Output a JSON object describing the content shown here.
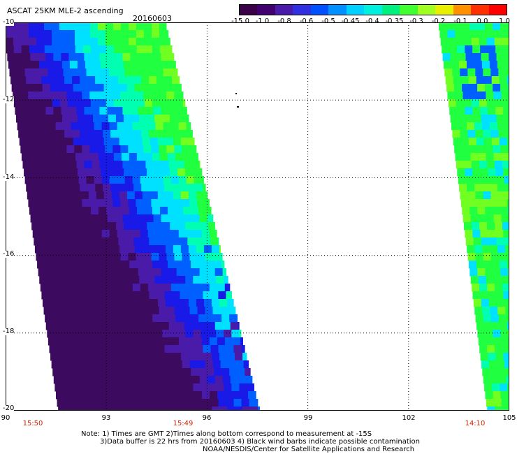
{
  "header": {
    "title": "ASCAT 25KM MLE-2 ascending",
    "date": "20160603"
  },
  "colorbar": {
    "labels": [
      "-15.0",
      "-1.0",
      "-0.8",
      "-0.6",
      "-0.5",
      "-0.45",
      "-0.4",
      "-0.35",
      "-0.3",
      "-0.2",
      "-0.1",
      "0.0",
      "1.0"
    ],
    "colors": [
      "#3a0048",
      "#400070",
      "#4a1aa8",
      "#3030e0",
      "#0050ff",
      "#0090ff",
      "#00d0ff",
      "#00f0e0",
      "#00f080",
      "#40ff30",
      "#a0ff20",
      "#e8f000",
      "#ff9000",
      "#ff3000",
      "#ff0000"
    ]
  },
  "map": {
    "lat_labels": [
      "-10",
      "-12",
      "-14",
      "-16",
      "-18",
      "-20"
    ],
    "lon_labels": [
      "90",
      "93",
      "96",
      "99",
      "102",
      "105"
    ],
    "times": [
      "15:50",
      "15:49",
      "14:10"
    ],
    "field_colors": [
      "#3c0a5e",
      "#4a1aa8",
      "#1a1ae8",
      "#0060ff",
      "#00e0ff",
      "#00ffb0",
      "#20ff40",
      "#70ff20"
    ]
  },
  "notes": {
    "line1": "Note: 1) Times are GMT 2)Times along bottom correspond to measurement at -15S",
    "line2": "3)Data buffer is 22 hrs from 20160603 4) Black wind barbs indicate possible contamination",
    "line3": "NOAA/NESDIS/Center for Satellite Applications and Research"
  }
}
